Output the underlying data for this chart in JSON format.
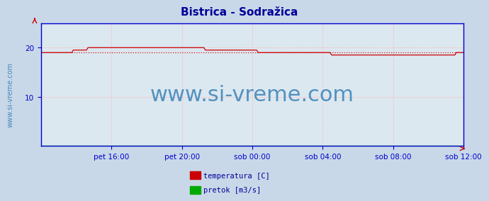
{
  "title": "Bistrica - Sodrаžica",
  "title_color": "#000099",
  "title_fontsize": 11,
  "bg_color": "#c8d8e8",
  "plot_bg_color": "#dce8f0",
  "axis_color": "#0000cc",
  "grid_color": "#ffb0b0",
  "grid_linestyle": ":",
  "yticks": [
    10,
    20
  ],
  "ylim": [
    0,
    25
  ],
  "xlim": [
    0,
    288
  ],
  "xtick_labels": [
    "pet 16:00",
    "pet 20:00",
    "sob 00:00",
    "sob 04:00",
    "sob 08:00",
    "sob 12:00"
  ],
  "xtick_positions": [
    48,
    96,
    144,
    192,
    240,
    288
  ],
  "watermark_text": "www.si-vreme.com",
  "watermark_color": "#4488bb",
  "watermark_fontsize": 22,
  "sidewater_text": "www.si-vreme.com",
  "sidewater_color": "#4488bb",
  "sidewater_fontsize": 7,
  "legend_items": [
    {
      "label": "temperatura [C]",
      "color": "#cc0000"
    },
    {
      "label": "pretok [m3/s]",
      "color": "#00aa00"
    }
  ],
  "avg_line_value": 19.1,
  "avg_line_color": "#cc0000",
  "avg_line_style": ":",
  "temp_color": "#cc0000",
  "flow_color": "#00cc00",
  "flow_data_value": 0.05
}
